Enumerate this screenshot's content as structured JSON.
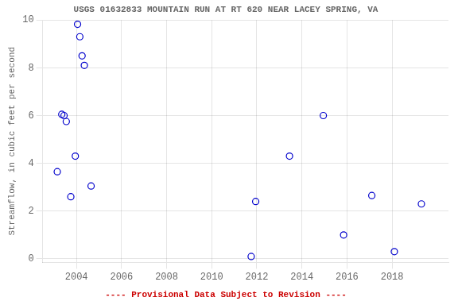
{
  "chart_data": {
    "type": "scatter",
    "title": "USGS 01632833 MOUNTAIN RUN AT RT 620 NEAR LACEY SPRING, VA",
    "ylabel": "Streamflow, in cubic feet per second",
    "annotation": "---- Provisional Data Subject to Revision ----",
    "x": [
      2003.15,
      2003.55,
      2004.05,
      2004.15,
      2004.25,
      2004.35,
      2003.75,
      2003.95,
      2004.65,
      2011.75,
      2011.95,
      2013.45,
      2014.95,
      2015.85,
      2017.1,
      2018.1,
      2019.3,
      2003.35,
      2003.45
    ],
    "values": [
      3.65,
      5.75,
      9.82,
      9.3,
      8.5,
      8.1,
      2.6,
      4.3,
      3.05,
      0.1,
      2.4,
      4.3,
      6.0,
      1.0,
      2.65,
      0.3,
      2.3,
      6.05,
      6.0
    ],
    "color": "#0000cc",
    "marker": "circle",
    "xlim": [
      2002.5,
      2020.5
    ],
    "ylim": [
      -0.15,
      10.0
    ],
    "xticks": [
      2004,
      2006,
      2008,
      2010,
      2012,
      2014,
      2016,
      2018
    ],
    "yticks": [
      0,
      2,
      4,
      6,
      8,
      10
    ],
    "grid": true
  }
}
